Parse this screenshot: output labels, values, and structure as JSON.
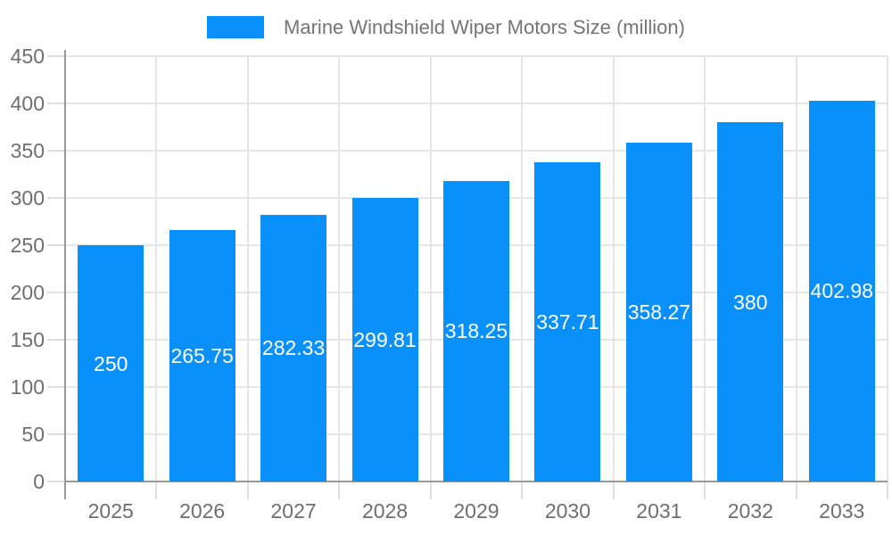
{
  "legend": {
    "label": "Marine Windshield Wiper Motors Size (million)"
  },
  "chart_data": {
    "type": "bar",
    "title": "Marine Windshield Wiper Motors Size (million)",
    "categories": [
      "2025",
      "2026",
      "2027",
      "2028",
      "2029",
      "2030",
      "2031",
      "2032",
      "2033"
    ],
    "values": [
      250,
      265.75,
      282.33,
      299.81,
      318.25,
      337.71,
      358.27,
      380,
      402.98
    ],
    "value_labels": [
      "250",
      "265.75",
      "282.33",
      "299.81",
      "318.25",
      "337.71",
      "358.27",
      "380",
      "402.98"
    ],
    "xlabel": "",
    "ylabel": "",
    "ylim": [
      0,
      450
    ],
    "ytick_step": 50,
    "grid": true,
    "legend_position": "top",
    "colors": {
      "bar": "#0990fb",
      "bar_label_text": "#ffffff",
      "title_text": "#757575",
      "axis_text": "#6f6f6f",
      "axis_line": "#999999",
      "gridline": "#e6e6e6",
      "tick": "#e0e0e0",
      "background": "#ffffff"
    }
  }
}
